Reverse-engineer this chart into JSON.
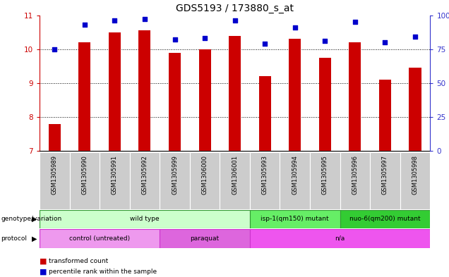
{
  "title": "GDS5193 / 173880_s_at",
  "samples": [
    "GSM1305989",
    "GSM1305990",
    "GSM1305991",
    "GSM1305992",
    "GSM1305999",
    "GSM1306000",
    "GSM1306001",
    "GSM1305993",
    "GSM1305994",
    "GSM1305995",
    "GSM1305996",
    "GSM1305997",
    "GSM1305998"
  ],
  "transformed_count": [
    7.8,
    10.2,
    10.5,
    10.55,
    9.9,
    10.0,
    10.4,
    9.2,
    10.3,
    9.75,
    10.2,
    9.1,
    9.45
  ],
  "percentile_rank": [
    75,
    93,
    96,
    97,
    82,
    83,
    96,
    79,
    91,
    81,
    95,
    80,
    84
  ],
  "ylim_left": [
    7,
    11
  ],
  "ylim_right": [
    0,
    100
  ],
  "yticks_left": [
    7,
    8,
    9,
    10,
    11
  ],
  "yticks_right": [
    0,
    25,
    50,
    75,
    100
  ],
  "bar_color": "#cc0000",
  "dot_color": "#0000cc",
  "grid_color": "#000000",
  "genotype_groups": [
    {
      "label": "wild type",
      "start": 0,
      "end": 7,
      "color": "#ccffcc",
      "border": "#339933"
    },
    {
      "label": "isp-1(qm150) mutant",
      "start": 7,
      "end": 10,
      "color": "#66ee66",
      "border": "#339933"
    },
    {
      "label": "nuo-6(qm200) mutant",
      "start": 10,
      "end": 13,
      "color": "#33cc33",
      "border": "#339933"
    }
  ],
  "protocol_groups": [
    {
      "label": "control (untreated)",
      "start": 0,
      "end": 4,
      "color": "#ee99ee",
      "border": "#cc33cc"
    },
    {
      "label": "paraquat",
      "start": 4,
      "end": 7,
      "color": "#dd66dd",
      "border": "#cc33cc"
    },
    {
      "label": "n/a",
      "start": 7,
      "end": 13,
      "color": "#ee55ee",
      "border": "#cc33cc"
    }
  ],
  "legend_items": [
    {
      "color": "#cc0000",
      "label": "transformed count"
    },
    {
      "color": "#0000cc",
      "label": "percentile rank within the sample"
    }
  ],
  "left_label_color": "#cc0000",
  "right_label_color": "#3333cc",
  "tick_bg_color": "#cccccc",
  "ax_bg_color": "#ffffff"
}
